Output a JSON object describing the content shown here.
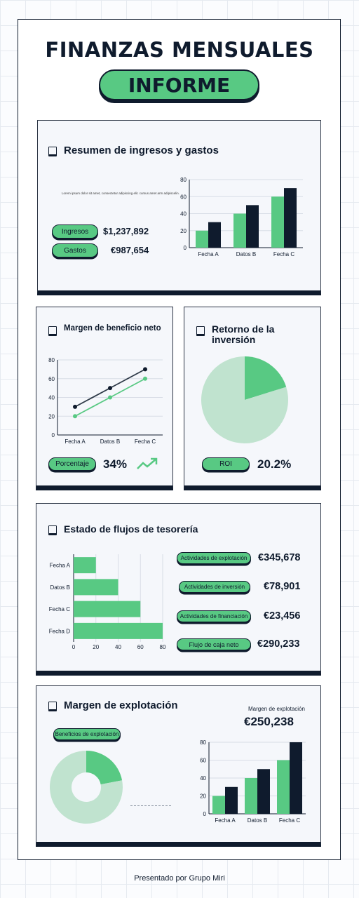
{
  "header": {
    "title": "FINANZAS MENSUALES",
    "subtitle": "INFORME"
  },
  "summary": {
    "title": "Resumen de ingresos y gastos",
    "lorem": "Lorem ipsum dolor sit amet, consectetur adipiscing elit. cursus amet arm adipiscelin.",
    "income_label": "Ingresos",
    "income_value": "$1,237,892",
    "expense_label": "Gastos",
    "expense_value": "€987,654"
  },
  "margin": {
    "title": "Margen de beneficio neto",
    "pill_label": "Porcentaje",
    "value": "34%",
    "trend_icon": "trend-up-icon"
  },
  "roi": {
    "title": "Retorno de la inversión",
    "pill_label": "ROI",
    "value": "20.2%"
  },
  "cashflow": {
    "title": "Estado de flujos de tesorería",
    "items": [
      {
        "label": "Actividades de explotación",
        "value": "€345,678"
      },
      {
        "label": "Actividades de inversión",
        "value": "€78,901"
      },
      {
        "label": "Actividades de financiación",
        "value": "€23,456"
      },
      {
        "label": "Flujo de caja neto",
        "value": "€290,233"
      }
    ]
  },
  "operating": {
    "title": "Margen de explotación",
    "label": "Margen de explotación",
    "value": "€250,238",
    "pill_label": "Beneficios de explotación"
  },
  "footer": "Presentado por Grupo Miri",
  "colors": {
    "green": "#58c983",
    "navy": "#0f1b2d",
    "light_green": "#c0e3cf"
  },
  "chart_data": [
    {
      "type": "bar",
      "categories": [
        "Fecha A",
        "Datos B",
        "Fecha C"
      ],
      "series": [
        {
          "values": [
            20,
            40,
            60
          ]
        },
        {
          "values": [
            30,
            50,
            70
          ]
        }
      ],
      "ylim": [
        0,
        80
      ],
      "yticks": [
        0,
        20,
        40,
        60,
        80
      ]
    },
    {
      "type": "line",
      "categories": [
        "Fecha A",
        "Datos B",
        "Fecha C"
      ],
      "series": [
        {
          "values": [
            30,
            50,
            70
          ]
        },
        {
          "values": [
            20,
            40,
            60
          ]
        }
      ],
      "ylim": [
        0,
        80
      ],
      "yticks": [
        0,
        20,
        40,
        60,
        80
      ]
    },
    {
      "type": "pie",
      "values": [
        20.2,
        79.8
      ]
    },
    {
      "type": "bar",
      "orientation": "horizontal",
      "categories": [
        "Fecha A",
        "Datos B",
        "Fecha C",
        "Fecha D"
      ],
      "values": [
        20,
        40,
        60,
        80
      ],
      "xlim": [
        0,
        80
      ],
      "xticks": [
        0,
        20,
        40,
        60,
        80
      ]
    },
    {
      "type": "pie",
      "donut": true,
      "values": [
        22,
        78
      ]
    },
    {
      "type": "bar",
      "categories": [
        "Fecha A",
        "Datos B",
        "Fecha C"
      ],
      "series": [
        {
          "values": [
            20,
            40,
            60
          ]
        },
        {
          "values": [
            30,
            50,
            80
          ]
        }
      ],
      "ylim": [
        0,
        80
      ],
      "yticks": [
        0,
        20,
        40,
        60,
        80
      ]
    }
  ]
}
